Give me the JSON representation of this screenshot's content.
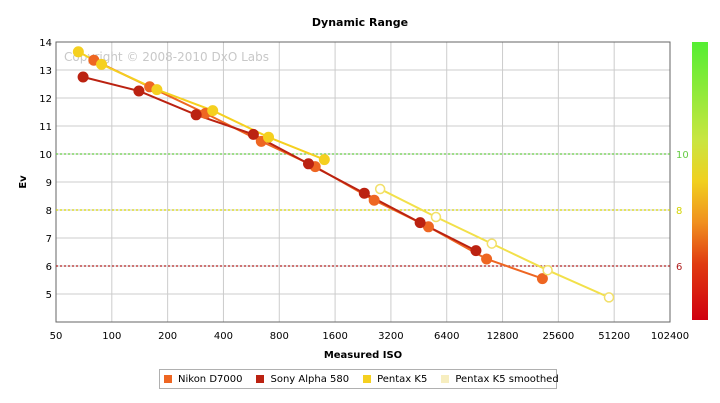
{
  "title": "Dynamic Range",
  "watermark": "Copyright © 2008-2010 DxO Labs",
  "chart_data": {
    "type": "line",
    "title": "Dynamic Range",
    "xlabel": "Measured ISO",
    "ylabel": "Ev",
    "x_scale": "log2",
    "xlim": [
      50,
      102400
    ],
    "ylim": [
      4,
      14
    ],
    "x_ticks": [
      50,
      100,
      200,
      400,
      800,
      1600,
      3200,
      6400,
      12800,
      25600,
      51200,
      102400
    ],
    "y_ticks": [
      5,
      6,
      7,
      8,
      9,
      10,
      11,
      12,
      13,
      14
    ],
    "grid": true,
    "legend_position": "bottom",
    "reference_lines": [
      {
        "y": 10,
        "label": "10",
        "color": "#66cc44"
      },
      {
        "y": 8,
        "label": "8",
        "color": "#d4d400"
      },
      {
        "y": 6,
        "label": "6",
        "color": "#b02020"
      }
    ],
    "series": [
      {
        "name": "Nikon D7000",
        "color": "#ee6622",
        "filled": true,
        "points": [
          [
            80,
            13.35
          ],
          [
            160,
            12.4
          ],
          [
            320,
            11.45
          ],
          [
            640,
            10.45
          ],
          [
            1250,
            9.55
          ],
          [
            2600,
            8.35
          ],
          [
            5100,
            7.4
          ],
          [
            10500,
            6.25
          ],
          [
            21000,
            5.55
          ]
        ]
      },
      {
        "name": "Sony Alpha 580",
        "color": "#bb2211",
        "filled": true,
        "points": [
          [
            70,
            12.75
          ],
          [
            140,
            12.25
          ],
          [
            285,
            11.4
          ],
          [
            580,
            10.7
          ],
          [
            1150,
            9.65
          ],
          [
            2300,
            8.6
          ],
          [
            4600,
            7.55
          ],
          [
            9200,
            6.55
          ]
        ]
      },
      {
        "name": "Pentax K5",
        "color": "#f5d020",
        "filled": true,
        "points": [
          [
            66,
            13.65
          ],
          [
            88,
            13.2
          ],
          [
            175,
            12.3
          ],
          [
            350,
            11.55
          ],
          [
            700,
            10.6
          ],
          [
            1400,
            9.8
          ]
        ]
      },
      {
        "name": "Pentax K5 smoothed",
        "color": "#f7e8a0",
        "filled": false,
        "points": [
          [
            2800,
            8.75
          ],
          [
            5600,
            7.75
          ],
          [
            11200,
            6.8
          ],
          [
            22400,
            5.85
          ],
          [
            48000,
            4.88
          ]
        ]
      }
    ]
  },
  "colorbar": {
    "label_10": "10",
    "label_8": "8",
    "label_6": "6"
  },
  "legend": [
    {
      "label": "Nikon D7000",
      "color": "#ee6622"
    },
    {
      "label": "Sony Alpha 580",
      "color": "#bb2211"
    },
    {
      "label": "Pentax K5",
      "color": "#f5d020"
    },
    {
      "label": "Pentax K5 smoothed",
      "color": "#f7eec0"
    }
  ]
}
